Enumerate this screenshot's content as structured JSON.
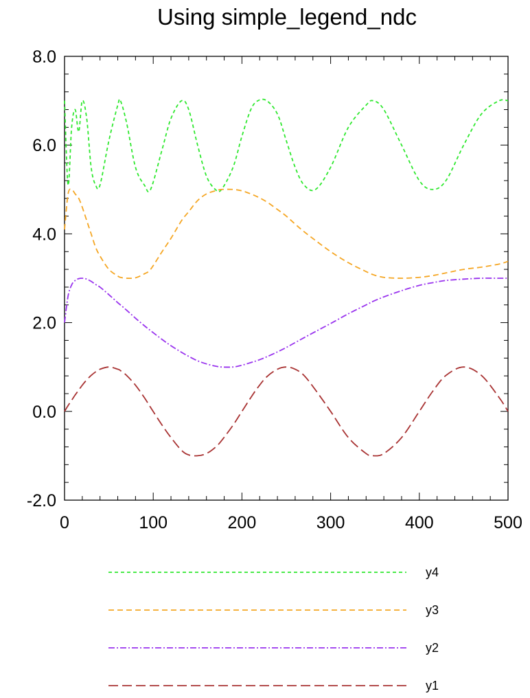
{
  "chart_data": {
    "type": "line",
    "title": "Using simple_legend_ndc",
    "xlabel": "",
    "ylabel": "",
    "xlim": [
      0,
      500
    ],
    "ylim": [
      -2.0,
      8.0
    ],
    "x_ticks": [
      0,
      100,
      200,
      300,
      400,
      500
    ],
    "x_tick_labels": [
      "0",
      "100",
      "200",
      "300",
      "400",
      "500"
    ],
    "y_ticks": [
      -2.0,
      0.0,
      2.0,
      4.0,
      6.0,
      8.0
    ],
    "y_tick_labels": [
      "-2.0",
      "0.0",
      "2.0",
      "4.0",
      "6.0",
      "8.0"
    ],
    "grid": false,
    "legend_position": "bottom",
    "x": [
      0,
      4,
      8,
      12,
      16,
      20,
      25,
      30,
      35,
      40,
      50,
      60,
      63,
      70,
      80,
      90,
      97,
      110,
      120,
      132,
      140,
      150,
      160,
      170,
      177,
      190,
      200,
      210,
      218,
      228,
      240,
      250,
      260,
      270,
      283,
      300,
      320,
      340,
      348,
      360,
      380,
      400,
      415,
      430,
      450,
      470,
      490,
      500
    ],
    "series": [
      {
        "name": "y4",
        "color": "#2ee82e",
        "dash": "5 4",
        "values": [
          7.0,
          5.1,
          6.4,
          6.8,
          6.3,
          7.0,
          6.6,
          5.5,
          5.1,
          5.1,
          6.1,
          6.9,
          7.0,
          6.5,
          5.5,
          5.1,
          5.0,
          5.9,
          6.6,
          7.0,
          6.8,
          6.0,
          5.3,
          5.0,
          5.0,
          5.5,
          6.2,
          6.8,
          7.0,
          7.0,
          6.7,
          6.1,
          5.5,
          5.1,
          5.0,
          5.5,
          6.4,
          6.9,
          7.0,
          6.8,
          6.0,
          5.2,
          5.0,
          5.2,
          6.0,
          6.7,
          7.0,
          7.0
        ]
      },
      {
        "name": "y3",
        "color": "#f5a623",
        "dash": "8 5",
        "values": [
          4.1,
          4.9,
          5.0,
          4.9,
          4.8,
          4.6,
          4.3,
          4.0,
          3.7,
          3.5,
          3.2,
          3.05,
          3.02,
          3.0,
          3.01,
          3.1,
          3.2,
          3.6,
          3.9,
          4.3,
          4.5,
          4.75,
          4.9,
          4.97,
          5.0,
          5.0,
          4.97,
          4.9,
          4.83,
          4.72,
          4.55,
          4.4,
          4.22,
          4.05,
          3.85,
          3.6,
          3.35,
          3.15,
          3.08,
          3.02,
          3.0,
          3.02,
          3.06,
          3.12,
          3.2,
          3.25,
          3.32,
          3.38
        ]
      },
      {
        "name": "y2",
        "color": "#9933ee",
        "dash": "9 3 2 3",
        "values": [
          2.0,
          2.6,
          2.85,
          2.95,
          2.99,
          3.0,
          2.98,
          2.93,
          2.86,
          2.8,
          2.63,
          2.45,
          2.4,
          2.28,
          2.1,
          1.93,
          1.82,
          1.62,
          1.48,
          1.33,
          1.24,
          1.14,
          1.07,
          1.02,
          1.0,
          1.0,
          1.04,
          1.1,
          1.15,
          1.23,
          1.34,
          1.44,
          1.55,
          1.66,
          1.8,
          1.98,
          2.2,
          2.4,
          2.48,
          2.58,
          2.72,
          2.84,
          2.9,
          2.95,
          2.98,
          3.0,
          3.0,
          3.0
        ]
      },
      {
        "name": "y1",
        "color": "#a83232",
        "dash": "14 6",
        "values": [
          0.0,
          0.13,
          0.25,
          0.37,
          0.48,
          0.59,
          0.71,
          0.81,
          0.89,
          0.95,
          1.0,
          0.95,
          0.92,
          0.81,
          0.59,
          0.31,
          0.09,
          -0.31,
          -0.59,
          -0.88,
          -0.98,
          -1.0,
          -0.95,
          -0.81,
          -0.66,
          -0.31,
          0.0,
          0.31,
          0.54,
          0.78,
          0.95,
          1.0,
          0.95,
          0.81,
          0.48,
          -0.0,
          -0.59,
          -0.95,
          -1.0,
          -0.95,
          -0.59,
          0.0,
          0.45,
          0.81,
          1.0,
          0.81,
          0.31,
          0.0
        ]
      }
    ]
  },
  "legend": {
    "items": [
      {
        "label": "y4",
        "color": "#2ee82e",
        "dash": "5 4"
      },
      {
        "label": "y3",
        "color": "#f5a623",
        "dash": "8 5"
      },
      {
        "label": "y2",
        "color": "#9933ee",
        "dash": "9 3 2 3"
      },
      {
        "label": "y1",
        "color": "#a83232",
        "dash": "14 6"
      }
    ]
  }
}
